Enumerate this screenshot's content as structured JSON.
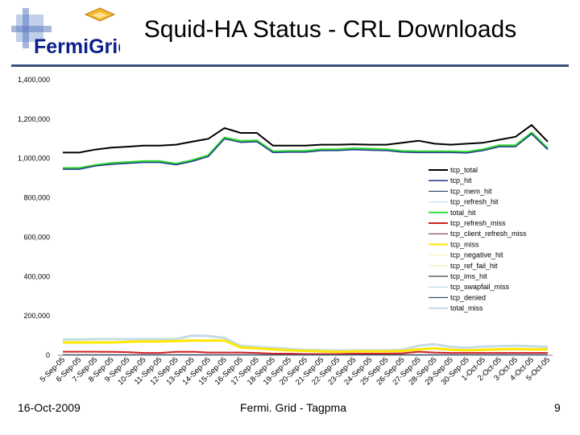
{
  "slide": {
    "title": "Squid-HA Status - CRL Downloads",
    "footer_left": "16-Oct-2009",
    "footer_center": "Fermi. Grid - Tagpma",
    "page_number": "9",
    "logo_text": "FermiGrid",
    "title_rule_color": "#3a4f7a"
  },
  "chart_data": {
    "type": "line",
    "title": "",
    "xlabel": "",
    "ylabel": "",
    "ylim": [
      0,
      1400000
    ],
    "yticks": [
      0,
      200000,
      400000,
      600000,
      800000,
      1000000,
      1200000,
      1400000
    ],
    "ytick_labels": [
      "0",
      "200,000",
      "400,000",
      "600,000",
      "800,000",
      "1,000,000",
      "1,200,000",
      "1,400,000"
    ],
    "grid": false,
    "legend_position": "right",
    "categories": [
      "5-Sep-05",
      "6-Sep-05",
      "7-Sep-05",
      "8-Sep-05",
      "9-Sep-05",
      "10-Sep-05",
      "11-Sep-05",
      "12-Sep-05",
      "13-Sep-05",
      "14-Sep-05",
      "15-Sep-05",
      "16-Sep-05",
      "17-Sep-05",
      "18-Sep-05",
      "19-Sep-05",
      "20-Sep-05",
      "21-Sep-05",
      "22-Sep-05",
      "23-Sep-05",
      "24-Sep-05",
      "25-Sep-05",
      "26-Sep-05",
      "27-Sep-05",
      "28-Sep-05",
      "29-Sep-05",
      "30-Sep-05",
      "1-Oct-05",
      "2-Oct-05",
      "3-Oct-05",
      "4-Oct-05",
      "5-Oct-05"
    ],
    "series": [
      {
        "name": "tcp_total",
        "color": "#000000",
        "width": 2,
        "values": [
          1030000,
          1030000,
          1045000,
          1055000,
          1060000,
          1065000,
          1065000,
          1070000,
          1085000,
          1100000,
          1155000,
          1130000,
          1130000,
          1065000,
          1065000,
          1065000,
          1070000,
          1070000,
          1072000,
          1070000,
          1070000,
          1080000,
          1090000,
          1075000,
          1070000,
          1075000,
          1080000,
          1095000,
          1110000,
          1170000,
          1085000
        ]
      },
      {
        "name": "tcp_hit",
        "color": "#1f3a8a",
        "width": 1.5,
        "values": [
          945000,
          945000,
          962000,
          970000,
          975000,
          980000,
          980000,
          968000,
          985000,
          1010000,
          1100000,
          1082000,
          1085000,
          1030000,
          1032000,
          1032000,
          1040000,
          1040000,
          1045000,
          1042000,
          1040000,
          1032000,
          1030000,
          1030000,
          1030000,
          1028000,
          1040000,
          1060000,
          1060000,
          1125000,
          1045000
        ]
      },
      {
        "name": "tcp_mem_hit",
        "color": "#0f2a5c",
        "width": 1,
        "values": [
          1000,
          1000,
          1000,
          1000,
          1000,
          1000,
          1000,
          1000,
          1000,
          1000,
          1000,
          1000,
          1000,
          1000,
          1000,
          1000,
          1000,
          1000,
          1000,
          1000,
          1000,
          1000,
          1000,
          1000,
          1000,
          1000,
          1000,
          1000,
          1000,
          1000,
          1000
        ]
      },
      {
        "name": "tcp_refresh_hit",
        "color": "#b7e2ea",
        "width": 1,
        "values": [
          2000,
          2000,
          2000,
          2000,
          2000,
          2000,
          2000,
          2000,
          2000,
          2000,
          2000,
          2000,
          2000,
          2000,
          2000,
          2000,
          2000,
          2000,
          2000,
          2000,
          2000,
          2000,
          2000,
          2000,
          2000,
          2000,
          2000,
          2000,
          2000,
          2000,
          2000
        ]
      },
      {
        "name": "total_hit",
        "color": "#33dd33",
        "width": 3,
        "values": [
          950000,
          950000,
          965000,
          975000,
          980000,
          985000,
          985000,
          972000,
          990000,
          1015000,
          1105000,
          1088000,
          1090000,
          1035000,
          1037000,
          1037000,
          1045000,
          1045000,
          1050000,
          1048000,
          1045000,
          1037000,
          1035000,
          1035000,
          1035000,
          1033000,
          1045000,
          1065000,
          1065000,
          1130000,
          1050000
        ]
      },
      {
        "name": "tcp_refresh_miss",
        "color": "#cc2222",
        "width": 2,
        "values": [
          18000,
          18000,
          18000,
          17000,
          16000,
          12000,
          12000,
          17000,
          18000,
          14000,
          14000,
          14000,
          12000,
          8000,
          8000,
          6000,
          6000,
          6000,
          8000,
          8000,
          8000,
          10000,
          18000,
          14000,
          12000,
          12000,
          12000,
          12000,
          12000,
          12000,
          12000
        ]
      },
      {
        "name": "tcp_client_refresh_miss",
        "color": "#6a1e3a",
        "width": 1,
        "values": [
          3000,
          3000,
          3000,
          3000,
          3000,
          3000,
          3000,
          3000,
          3000,
          3000,
          3000,
          3000,
          3000,
          3000,
          3000,
          3000,
          3000,
          3000,
          3000,
          3000,
          3000,
          3000,
          3000,
          3000,
          3000,
          3000,
          3000,
          3000,
          3000,
          3000,
          3000
        ]
      },
      {
        "name": "tcp_miss",
        "color": "#ffe600",
        "width": 3,
        "values": [
          65000,
          65000,
          65000,
          65000,
          68000,
          70000,
          70000,
          72000,
          75000,
          75000,
          75000,
          40000,
          35000,
          30000,
          25000,
          22000,
          20000,
          18000,
          20000,
          20000,
          20000,
          22000,
          30000,
          35000,
          28000,
          25000,
          28000,
          30000,
          32000,
          30000,
          30000
        ]
      },
      {
        "name": "tcp_negative_hit",
        "color": "#f7f2a0",
        "width": 1,
        "values": [
          0,
          0,
          0,
          0,
          0,
          0,
          0,
          0,
          0,
          0,
          0,
          0,
          0,
          0,
          0,
          0,
          0,
          0,
          0,
          0,
          0,
          0,
          0,
          0,
          0,
          0,
          0,
          0,
          0,
          0,
          0
        ]
      },
      {
        "name": "tcp_ref_fail_hit",
        "color": "#f5eea5",
        "width": 1,
        "values": [
          500,
          500,
          500,
          500,
          500,
          500,
          500,
          500,
          500,
          500,
          500,
          500,
          500,
          500,
          500,
          500,
          500,
          500,
          500,
          500,
          500,
          500,
          500,
          500,
          500,
          500,
          500,
          500,
          500,
          500,
          500
        ]
      },
      {
        "name": "tcp_ims_hit",
        "color": "#111111",
        "width": 1,
        "values": [
          1500,
          1500,
          1500,
          1500,
          1500,
          1500,
          1500,
          1500,
          1500,
          1500,
          1500,
          1500,
          1500,
          1500,
          1500,
          1500,
          1500,
          1500,
          1500,
          1500,
          1500,
          1500,
          1500,
          1500,
          1500,
          1500,
          1500,
          1500,
          1500,
          1500,
          1500
        ]
      },
      {
        "name": "tcp_swapfail_miss",
        "color": "#a9cdd8",
        "width": 1,
        "values": [
          1000,
          1000,
          1000,
          1000,
          1000,
          1000,
          1000,
          1000,
          1000,
          1000,
          1000,
          1000,
          1000,
          1000,
          1000,
          1000,
          1000,
          1000,
          1000,
          1000,
          1000,
          1000,
          1000,
          1000,
          1000,
          1000,
          1000,
          1000,
          1000,
          1000,
          1000
        ]
      },
      {
        "name": "tcp_denied",
        "color": "#1a2a55",
        "width": 1,
        "values": [
          0,
          0,
          0,
          0,
          0,
          0,
          0,
          0,
          0,
          0,
          0,
          0,
          0,
          0,
          0,
          0,
          0,
          0,
          0,
          0,
          0,
          0,
          0,
          0,
          0,
          0,
          0,
          0,
          0,
          0,
          0
        ]
      },
      {
        "name": "total_miss",
        "color": "#c2dce6",
        "width": 3,
        "values": [
          80000,
          80000,
          82000,
          82000,
          82000,
          82000,
          82000,
          82000,
          100000,
          98000,
          88000,
          48000,
          42000,
          38000,
          32000,
          28000,
          25000,
          24000,
          25000,
          25000,
          25000,
          28000,
          48000,
          56000,
          42000,
          38000,
          44000,
          46000,
          48000,
          46000,
          42000
        ]
      }
    ]
  }
}
